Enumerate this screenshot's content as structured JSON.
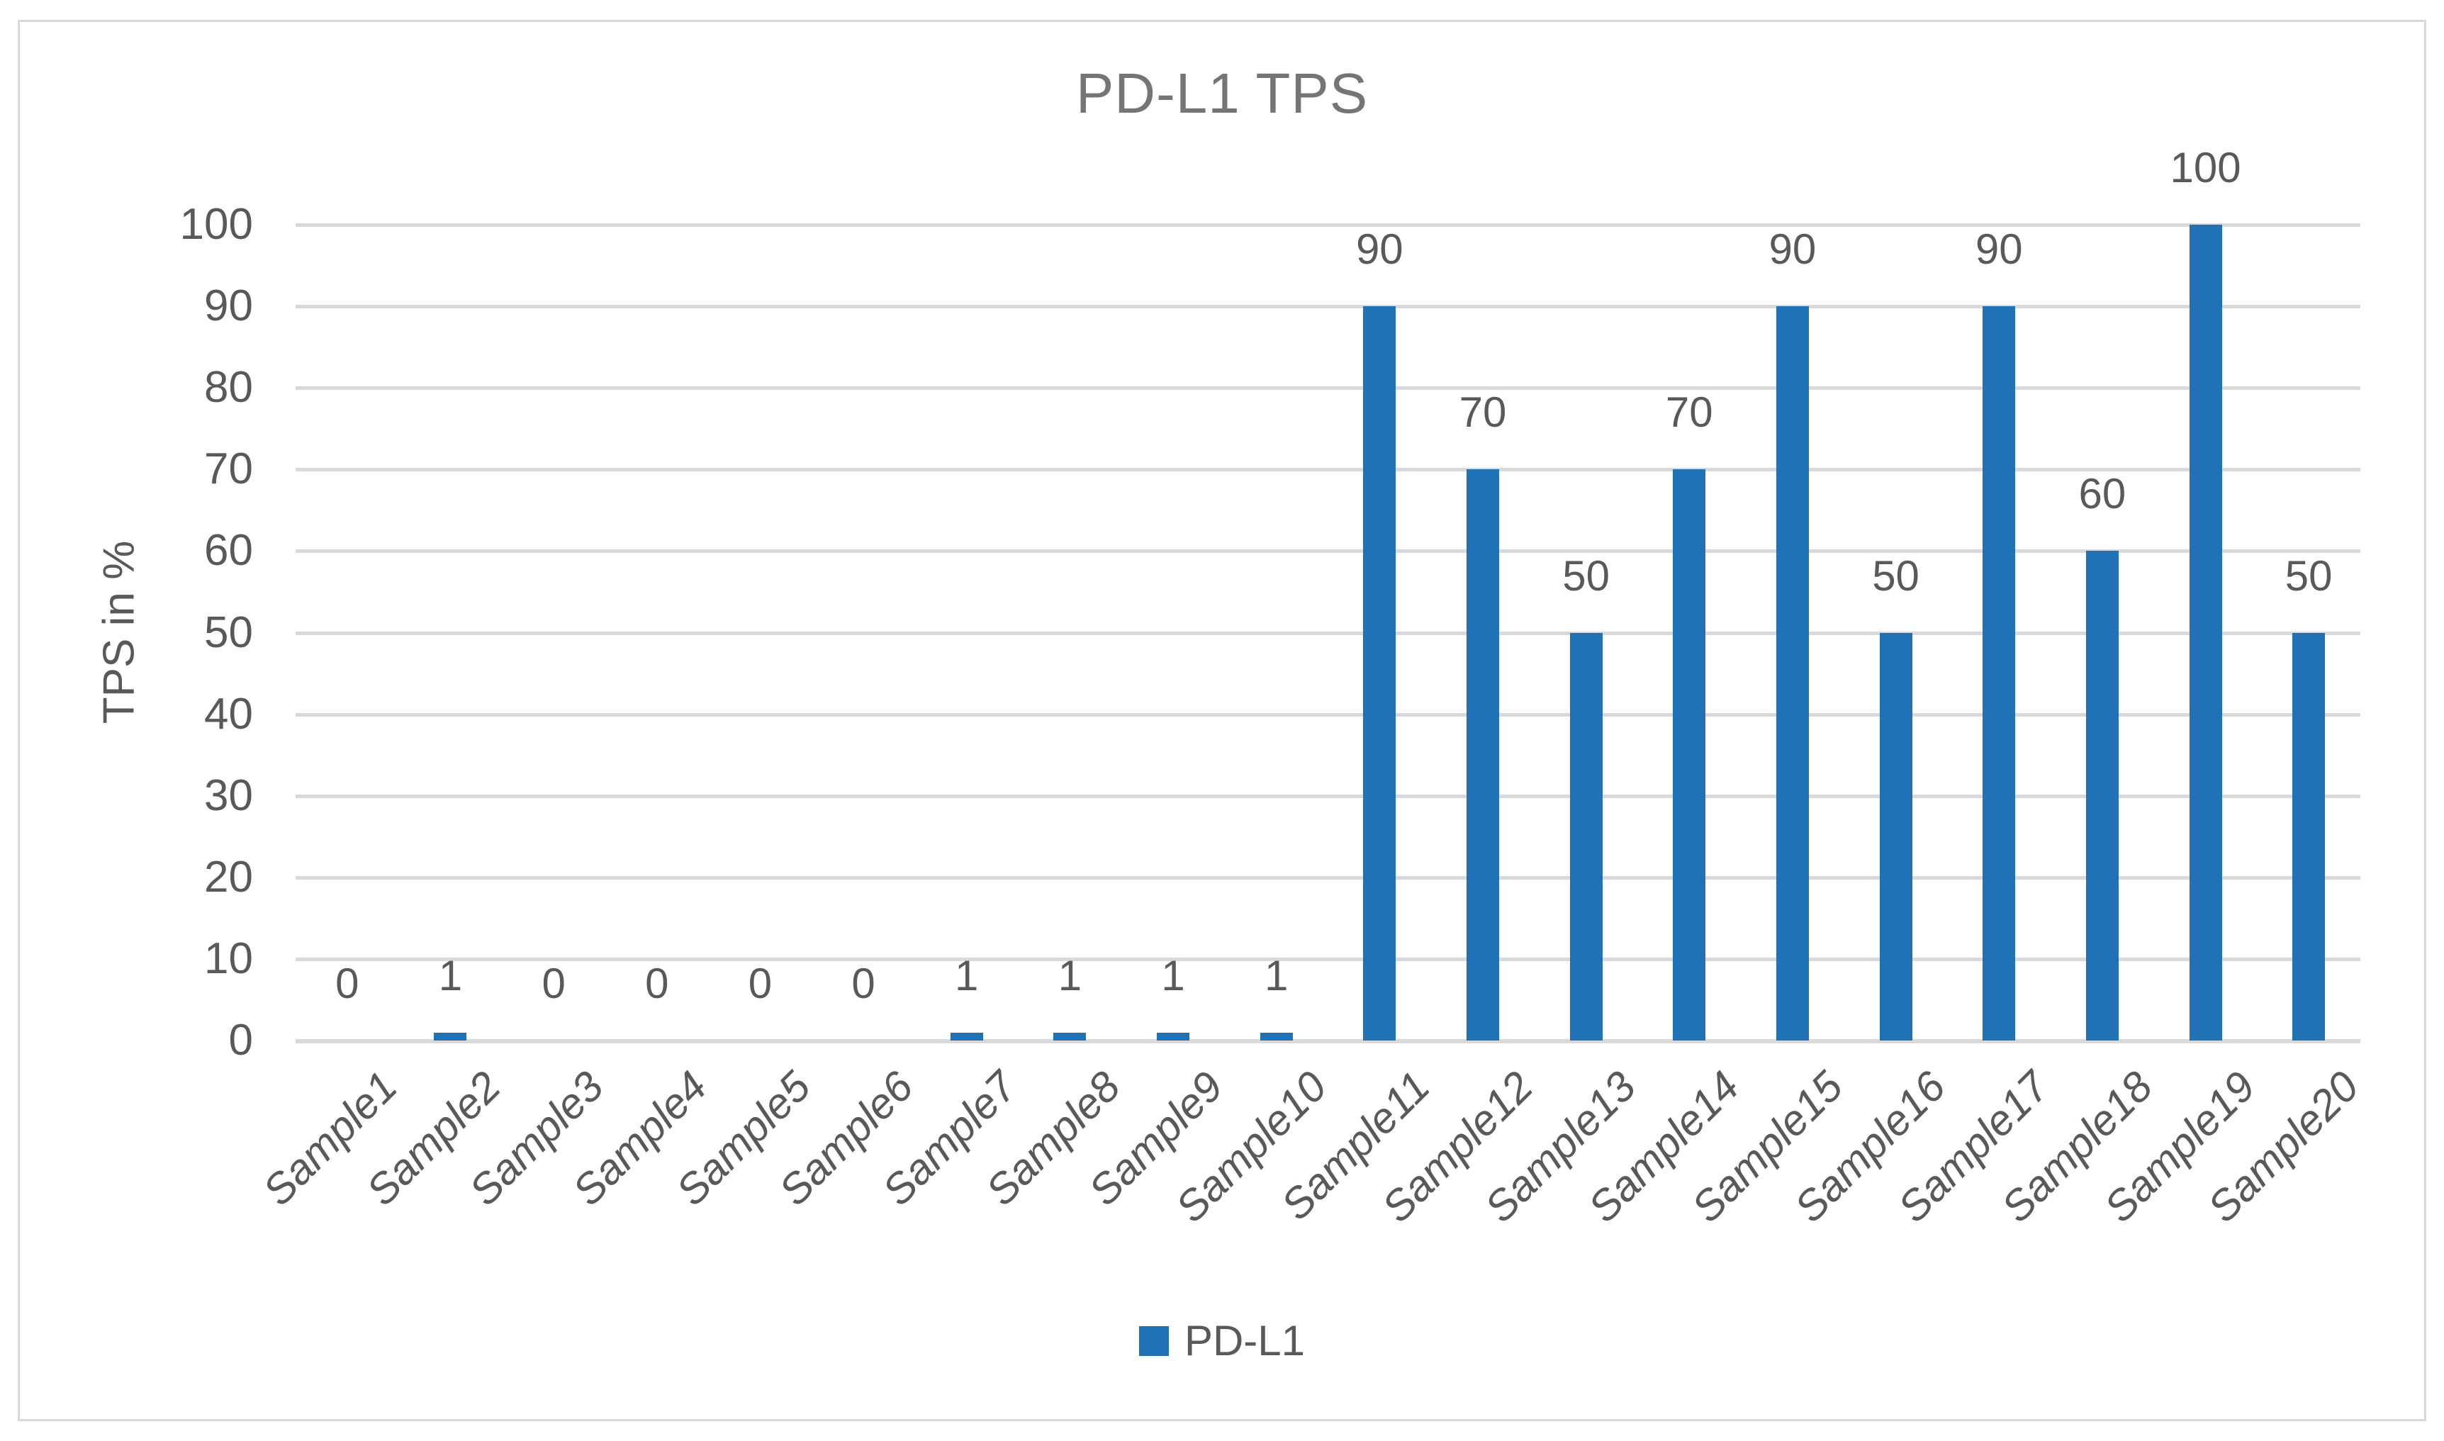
{
  "chart_data": {
    "type": "bar",
    "title": "PD-L1 TPS",
    "ylabel": "TPS in %",
    "xlabel": "",
    "categories": [
      "Sample1",
      "Sample2",
      "Sample3",
      "Sample4",
      "Sample5",
      "Sample6",
      "Sample7",
      "Sample8",
      "Sample9",
      "Sample10",
      "Sample11",
      "Sample12",
      "Sample13",
      "Sample14",
      "Sample15",
      "Sample16",
      "Sample17",
      "Sample18",
      "Sample19",
      "Sample20"
    ],
    "values": [
      0,
      1,
      0,
      0,
      0,
      0,
      1,
      1,
      1,
      1,
      90,
      70,
      50,
      70,
      90,
      50,
      90,
      60,
      100,
      50
    ],
    "data_labels": [
      0,
      1,
      0,
      0,
      0,
      0,
      1,
      1,
      1,
      1,
      90,
      70,
      50,
      70,
      90,
      50,
      90,
      60,
      100,
      50
    ],
    "series_name": "PD-L1",
    "yticks": [
      0,
      10,
      20,
      30,
      40,
      50,
      60,
      70,
      80,
      90,
      100
    ],
    "ylim": [
      0,
      100
    ],
    "grid": "horizontal",
    "legend_position": "bottom",
    "bar_color": "#1F72B6",
    "gridline_color": "#D9D9D9",
    "text_color": "#595959",
    "title_color": "#757575"
  }
}
